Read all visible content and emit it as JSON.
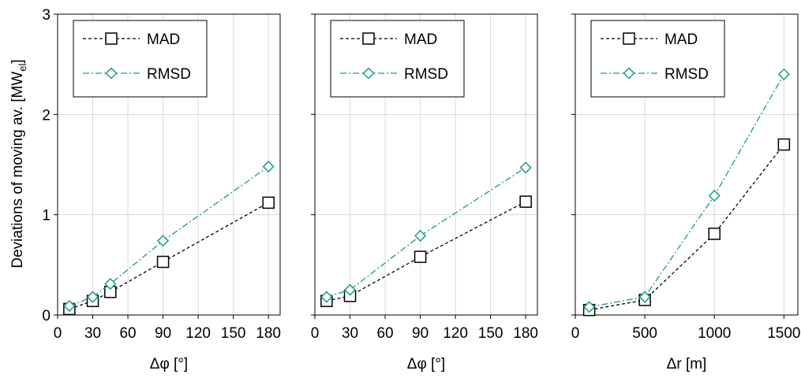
{
  "figure": {
    "ylabel_main": "Deviations of moving av. [MW",
    "ylabel_sub": "el",
    "ylabel_end": "]"
  },
  "chart_data": [
    {
      "type": "line",
      "xlabel": "Δφ [°]",
      "xlim": [
        0,
        190
      ],
      "ylim": [
        0,
        3
      ],
      "xticks": [
        0,
        30,
        60,
        90,
        120,
        150,
        180
      ],
      "xtick_labels": [
        "0",
        "30",
        "60",
        "90",
        "120",
        "150",
        "180"
      ],
      "yticks": [
        0,
        1,
        2,
        3
      ],
      "ytick_labels": [
        "0",
        "1",
        "2",
        "3"
      ],
      "grid": true,
      "legend_position": "top-left",
      "series": [
        {
          "name": "MAD",
          "marker": "square",
          "line": "dashed",
          "color": "#000000",
          "x": [
            10,
            30,
            45,
            90,
            180
          ],
          "y": [
            0.06,
            0.14,
            0.23,
            0.53,
            1.12
          ]
        },
        {
          "name": "RMSD",
          "marker": "diamond",
          "line": "dashdot",
          "color": "#1a9a8e",
          "x": [
            10,
            30,
            45,
            90,
            180
          ],
          "y": [
            0.09,
            0.18,
            0.31,
            0.74,
            1.48
          ]
        }
      ]
    },
    {
      "type": "line",
      "xlabel": "Δφ [°]",
      "xlim": [
        0,
        190
      ],
      "ylim": [
        0,
        3
      ],
      "xticks": [
        0,
        30,
        60,
        90,
        120,
        150,
        180
      ],
      "xtick_labels": [
        "0",
        "30",
        "60",
        "90",
        "120",
        "150",
        "180"
      ],
      "yticks": [
        0,
        1,
        2,
        3
      ],
      "ytick_labels": [
        "",
        "",
        "",
        ""
      ],
      "grid": true,
      "legend_position": "top-left",
      "series": [
        {
          "name": "MAD",
          "marker": "square",
          "line": "dashed",
          "color": "#000000",
          "x": [
            10,
            30,
            90,
            180
          ],
          "y": [
            0.14,
            0.19,
            0.58,
            1.13
          ]
        },
        {
          "name": "RMSD",
          "marker": "diamond",
          "line": "dashdot",
          "color": "#1a9a8e",
          "x": [
            10,
            30,
            90,
            180
          ],
          "y": [
            0.18,
            0.25,
            0.79,
            1.47
          ]
        }
      ]
    },
    {
      "type": "line",
      "xlabel": "Δr [m]",
      "xlim": [
        0,
        1600
      ],
      "ylim": [
        0,
        3
      ],
      "xticks": [
        0,
        500,
        1000,
        1500
      ],
      "xtick_labels": [
        "0",
        "500",
        "1000",
        "1500"
      ],
      "yticks": [
        0,
        1,
        2,
        3
      ],
      "ytick_labels": [
        "",
        "",
        "",
        ""
      ],
      "grid": true,
      "legend_position": "top-left",
      "series": [
        {
          "name": "MAD",
          "marker": "square",
          "line": "dashed",
          "color": "#000000",
          "x": [
            100,
            500,
            1000,
            1500
          ],
          "y": [
            0.05,
            0.15,
            0.81,
            1.7
          ]
        },
        {
          "name": "RMSD",
          "marker": "diamond",
          "line": "dashdot",
          "color": "#1a9a8e",
          "x": [
            100,
            500,
            1000,
            1500
          ],
          "y": [
            0.08,
            0.18,
            1.19,
            2.4
          ]
        }
      ]
    }
  ]
}
